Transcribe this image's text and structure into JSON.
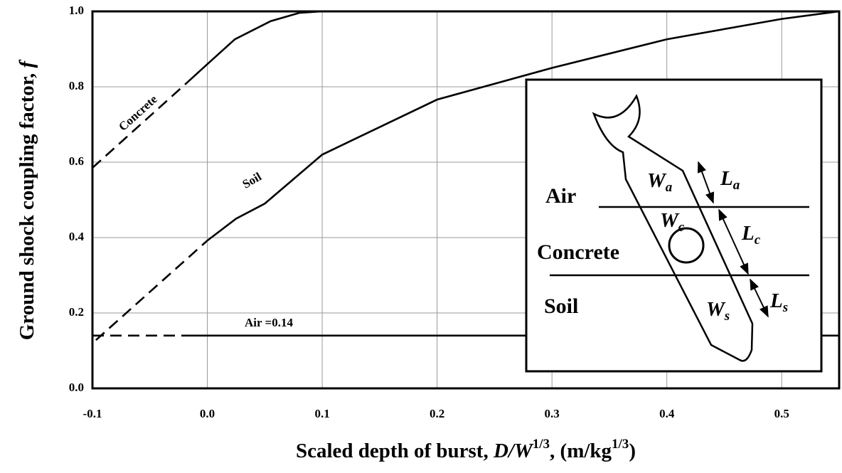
{
  "chart_data": {
    "type": "line",
    "xlabel": [
      "Scaled depth of burst, ",
      "D/W",
      "1/3",
      ", (m/kg",
      "1/3",
      ")"
    ],
    "ylabel": [
      "Ground shock coupling factor, ",
      "f"
    ],
    "xlim": [
      -0.1,
      0.55
    ],
    "ylim": [
      0,
      1
    ],
    "xticks": [
      -0.1,
      {
        "value": 0,
        "label": "0.0"
      },
      0.1,
      0.2,
      0.3,
      0.4,
      0.5
    ],
    "yticks": [
      {
        "value": 0,
        "label": "0.0"
      },
      0.2,
      0.4,
      0.6,
      0.8,
      {
        "value": 1,
        "label": "1.0"
      }
    ],
    "grid": true,
    "series": [
      {
        "name": "Concrete",
        "color": "#000000",
        "segments": [
          {
            "style": "dashed",
            "x": [
              -0.1,
              -0.018
            ],
            "values": [
              0.585,
              0.81
            ]
          },
          {
            "style": "solid",
            "x": [
              -0.018,
              0,
              0.024,
              0.055,
              0.08,
              0.1
            ],
            "values": [
              0.81,
              0.86,
              0.926,
              0.974,
              0.996,
              1.0
            ]
          }
        ]
      },
      {
        "name": "Soil",
        "color": "#000000",
        "segments": [
          {
            "style": "dashed",
            "x": [
              -0.097,
              0
            ],
            "values": [
              0.128,
              0.392
            ]
          },
          {
            "style": "solid",
            "x": [
              0,
              0.025,
              0.05,
              0.1,
              0.2,
              0.3,
              0.4,
              0.5,
              0.55
            ],
            "values": [
              0.392,
              0.45,
              0.49,
              0.62,
              0.766,
              0.85,
              0.926,
              0.98,
              1.0
            ]
          }
        ]
      },
      {
        "name": "Air =0.14",
        "color": "#000000",
        "segments": [
          {
            "style": "dashed",
            "x": [
              -0.1,
              -0.018
            ],
            "values": [
              0.14,
              0.14
            ]
          },
          {
            "style": "solid",
            "x": [
              -0.018,
              0.55
            ],
            "values": [
              0.14,
              0.14
            ]
          }
        ]
      }
    ]
  },
  "inset": {
    "layers": [
      "Air",
      "Concrete",
      "Soil"
    ],
    "weights": [
      {
        "symbol": "W",
        "subscript": "a"
      },
      {
        "symbol": "W",
        "subscript": "c"
      },
      {
        "symbol": "W",
        "subscript": "s"
      }
    ],
    "lengths": [
      {
        "symbol": "L",
        "subscript": "a"
      },
      {
        "symbol": "L",
        "subscript": "c"
      },
      {
        "symbol": "L",
        "subscript": "s"
      }
    ]
  }
}
